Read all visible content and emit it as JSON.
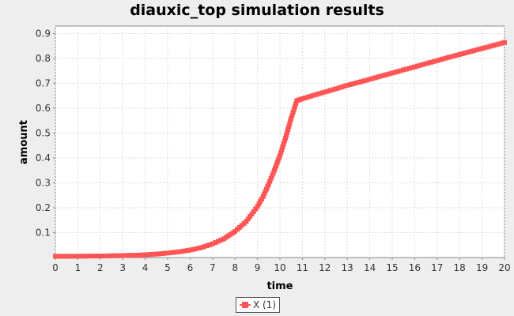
{
  "chart_data": {
    "type": "scatter",
    "title": "diauxic_top simulation results",
    "xlabel": "time",
    "ylabel": "amount",
    "xlim": [
      0,
      20
    ],
    "ylim": [
      0,
      0.93
    ],
    "xticks": [
      0,
      1,
      2,
      3,
      4,
      5,
      6,
      7,
      8,
      9,
      10,
      11,
      12,
      13,
      14,
      15,
      16,
      17,
      18,
      19,
      20
    ],
    "yticks": [
      0.1,
      0.2,
      0.3,
      0.4,
      0.5,
      0.6,
      0.7,
      0.8,
      0.9
    ],
    "grid": true,
    "legend_position": "bottom-center",
    "series": [
      {
        "name": "X (1)",
        "color": "#ff5555",
        "marker": "square",
        "x": [
          0.0,
          0.5,
          1.0,
          1.5,
          2.0,
          2.5,
          3.0,
          3.5,
          4.0,
          4.5,
          5.0,
          5.5,
          6.0,
          6.5,
          7.0,
          7.5,
          8.0,
          8.5,
          9.0,
          9.25,
          9.5,
          9.75,
          10.0,
          10.25,
          10.5,
          10.75,
          10.9,
          11.0,
          11.5,
          12.0,
          12.5,
          13.0,
          13.5,
          14.0,
          14.5,
          15.0,
          15.5,
          16.0,
          16.5,
          17.0,
          17.5,
          18.0,
          18.5,
          19.0,
          19.5,
          20.0
        ],
        "y": [
          0.005,
          0.005,
          0.005,
          0.006,
          0.006,
          0.007,
          0.008,
          0.009,
          0.011,
          0.014,
          0.018,
          0.023,
          0.03,
          0.04,
          0.055,
          0.075,
          0.105,
          0.145,
          0.205,
          0.245,
          0.295,
          0.35,
          0.41,
          0.48,
          0.56,
          0.63,
          0.635,
          0.638,
          0.652,
          0.665,
          0.678,
          0.692,
          0.704,
          0.716,
          0.729,
          0.741,
          0.754,
          0.766,
          0.779,
          0.791,
          0.804,
          0.816,
          0.828,
          0.84,
          0.852,
          0.864
        ]
      }
    ]
  }
}
